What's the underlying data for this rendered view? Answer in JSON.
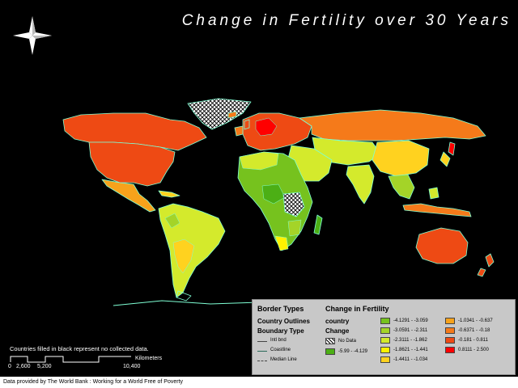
{
  "title": "Change in Fertility over 30 Years",
  "note": "Countries filled in black represent no collected data.",
  "credit": "Data provided by The World Bank : Working for a World Free of Poverty",
  "scale": {
    "ticks": [
      "0",
      "2,600",
      "5,200",
      "10,400"
    ],
    "unit": "Kilometers"
  },
  "legend": {
    "border_heading": "Border Types",
    "country_outlines_heading": "Country Outlines",
    "boundary_heading": "Boundary Type",
    "boundary_items": [
      "Intl bnd",
      "Coastline",
      "Median Line"
    ],
    "change_heading": "Change in Fertility",
    "country_label": "country",
    "change_label": "Change",
    "nodata_label": "No Data",
    "classes": [
      {
        "label": "-5.99 - -4.129",
        "color": "#4caf15"
      },
      {
        "label": "-4.1291 - -3.059",
        "color": "#76c21e"
      },
      {
        "label": "-3.0591 - -2.311",
        "color": "#a4d428"
      },
      {
        "label": "-2.3111 - -1.862",
        "color": "#d4ea2c"
      },
      {
        "label": "-1.8621 - -1.441",
        "color": "#fff200"
      },
      {
        "label": "-1.4411 - -1.034",
        "color": "#ffd21f"
      },
      {
        "label": "-1.0341 - -0.637",
        "color": "#f7a21b"
      },
      {
        "label": "-0.6371 - -0.18",
        "color": "#f57a1a"
      },
      {
        "label": "-0.181 - 0.811",
        "color": "#ee4a14"
      },
      {
        "label": "0.8111 - 2.500",
        "color": "#ff0000"
      }
    ]
  },
  "colors": {
    "coast": "#7fffd4",
    "background": "#000000"
  }
}
